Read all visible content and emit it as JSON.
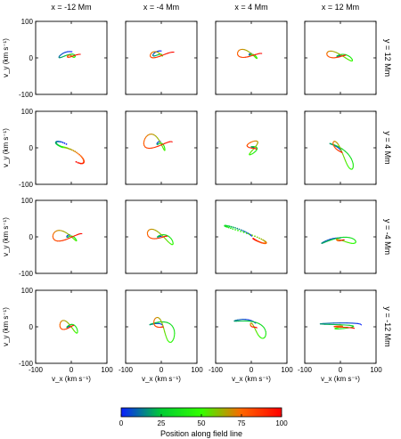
{
  "chart_data": {
    "type": "line",
    "columns": [
      "x = -12 Mm",
      "x = -4 Mm",
      "x = 4 Mm",
      "x = 12 Mm"
    ],
    "rows": [
      "y = 12 Mm",
      "y = 4 Mm",
      "y = -4 Mm",
      "y = -12 Mm"
    ],
    "xlabel": "v_x (km s⁻¹)",
    "ylabel": "v_y (km s⁻¹)",
    "xlim": [
      -100,
      100
    ],
    "ylim": [
      -100,
      100
    ],
    "xticks": [
      -100,
      0,
      100
    ],
    "yticks": [
      -100,
      0,
      100
    ],
    "colorbar": {
      "label": "Position along field line",
      "ticks": [
        0,
        25,
        50,
        75,
        100
      ],
      "colors": [
        "#0a1fff",
        "#00cc33",
        "#33ff00",
        "#ff6600",
        "#ff0000"
      ]
    },
    "panels": [
      [
        {
          "cx": 0,
          "cy": 5,
          "ax": 12,
          "ay": 38,
          "tilt": 80,
          "style": "loops"
        },
        {
          "cx": -2,
          "cy": 8,
          "ax": 14,
          "ay": 42,
          "tilt": 80,
          "style": "loops"
        },
        {
          "cx": 0,
          "cy": 8,
          "ax": 12,
          "ay": 40,
          "tilt": 78,
          "style": "loops"
        },
        {
          "cx": 0,
          "cy": 5,
          "ax": 10,
          "ay": 42,
          "tilt": 82,
          "style": "loops"
        }
      ],
      [
        {
          "cx": -20,
          "cy": 0,
          "ax": 15,
          "ay": 80,
          "tilt": 58,
          "style": "streak"
        },
        {
          "cx": -5,
          "cy": 10,
          "ax": 22,
          "ay": 45,
          "tilt": 70,
          "style": "loops"
        },
        {
          "cx": 5,
          "cy": 0,
          "ax": 18,
          "ay": 18,
          "tilt": 20,
          "style": "loops"
        },
        {
          "cx": 0,
          "cy": -10,
          "ax": 12,
          "ay": 58,
          "tilt": 42,
          "style": "loops"
        }
      ],
      [
        {
          "cx": -5,
          "cy": 0,
          "ax": 16,
          "ay": 48,
          "tilt": 82,
          "style": "loops"
        },
        {
          "cx": 0,
          "cy": 0,
          "ax": 14,
          "ay": 44,
          "tilt": 75,
          "style": "loops"
        },
        {
          "cx": 0,
          "cy": 0,
          "ax": 12,
          "ay": 90,
          "tilt": 60,
          "style": "streak"
        },
        {
          "cx": 0,
          "cy": -10,
          "ax": 10,
          "ay": 55,
          "tilt": 88,
          "style": "loops"
        }
      ],
      [
        {
          "cx": -5,
          "cy": 0,
          "ax": 14,
          "ay": 30,
          "tilt": 78,
          "style": "loops"
        },
        {
          "cx": 0,
          "cy": 0,
          "ax": 22,
          "ay": 48,
          "tilt": 55,
          "style": "loops"
        },
        {
          "cx": 5,
          "cy": 0,
          "ax": 18,
          "ay": 55,
          "tilt": 55,
          "style": "loops"
        },
        {
          "cx": 0,
          "cy": 0,
          "ax": 60,
          "ay": 14,
          "tilt": 5,
          "style": "loops"
        }
      ]
    ]
  }
}
